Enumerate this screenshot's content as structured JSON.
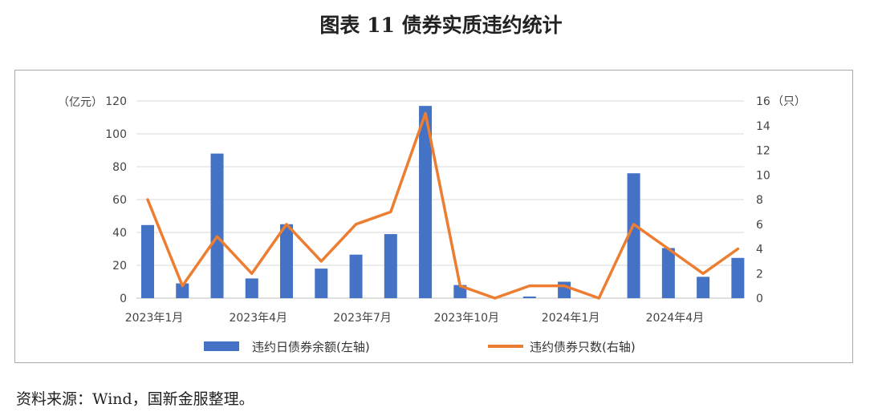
{
  "title": "图表 11  债券实质违约统计",
  "source": "资料来源：Wind，国新金服整理。",
  "chart_data": {
    "type": "bar+line",
    "categories": [
      "2023年1月",
      "2023年2月",
      "2023年3月",
      "2023年4月",
      "2023年5月",
      "2023年6月",
      "2023年7月",
      "2023年8月",
      "2023年9月",
      "2023年10月",
      "2023年11月",
      "2023年12月",
      "2024年1月",
      "2024年2月",
      "2024年3月",
      "2024年4月",
      "2024年5月",
      "2024年6月"
    ],
    "x_tick_labels": [
      "2023年1月",
      "",
      "",
      "2023年4月",
      "",
      "",
      "2023年7月",
      "",
      "",
      "2023年10月",
      "",
      "",
      "2024年1月",
      "",
      "",
      "2024年4月",
      "",
      ""
    ],
    "series": [
      {
        "name": "违约日债券余额(左轴)",
        "type": "bar",
        "axis": "left",
        "color": "#4472c4",
        "values": [
          44.5,
          9,
          88,
          12,
          45,
          18,
          26.5,
          39,
          117,
          8,
          0,
          1,
          10,
          0,
          76,
          30.5,
          13,
          24.5
        ]
      },
      {
        "name": "违约债券只数(右轴)",
        "type": "line",
        "axis": "right",
        "color": "#ed7d31",
        "values": [
          8,
          1,
          5,
          2,
          6,
          3,
          6,
          7,
          15,
          1,
          0,
          1,
          1,
          0,
          6,
          4,
          2,
          4
        ]
      }
    ],
    "y_left": {
      "unit": "（亿元）",
      "ylim": [
        0,
        120
      ],
      "ticks": [
        0,
        20,
        40,
        60,
        80,
        100,
        120
      ]
    },
    "y_right": {
      "unit": "（只）",
      "ylim": [
        0,
        16
      ],
      "ticks": [
        0,
        2,
        4,
        6,
        8,
        10,
        12,
        14,
        16
      ]
    },
    "grid": true,
    "legend": "bottom"
  }
}
